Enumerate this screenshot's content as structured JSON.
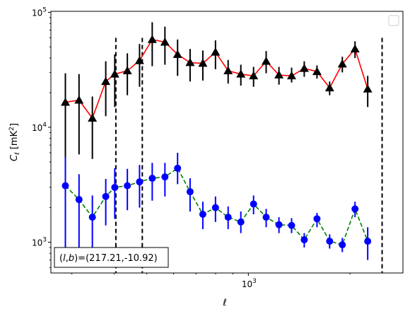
{
  "chart_data": {
    "type": "scatter",
    "xscale": "log",
    "yscale": "log",
    "xlim": [
      260,
      2870
    ],
    "ylim": [
      540,
      102000
    ],
    "xlabel": "ℓ",
    "ylabel_main": "C",
    "ylabel_sub": "ℓ",
    "ylabel_unit_pre": "[mK",
    "ylabel_unit_sup": "2",
    "ylabel_unit_post": "]",
    "x_ticks": [
      {
        "value": 1000,
        "base": "10",
        "exp": "3"
      }
    ],
    "y_ticks": [
      {
        "value": 1000,
        "base": "10",
        "exp": "3"
      },
      {
        "value": 10000,
        "base": "10",
        "exp": "4"
      },
      {
        "value": 100000,
        "base": "10",
        "exp": "5"
      }
    ],
    "legend": "upper right (empty)",
    "grid": false,
    "vlines": [
      405,
      485,
      2490
    ],
    "annotation": {
      "prefix": "(",
      "l": "l",
      "sep": ",",
      "b": "b",
      "suffix": ")=(217.21,-10.92)"
    },
    "series": [
      {
        "color": "#ff0000",
        "linestyle": "solid",
        "marker": "triangle",
        "marker_color": "#000000",
        "errorbar_color": "#000000",
        "points": [
          {
            "x": 287,
            "y": 16500,
            "lo": 1000,
            "hi": 29500
          },
          {
            "x": 315,
            "y": 17200,
            "lo": 5800,
            "hi": 29000
          },
          {
            "x": 345,
            "y": 12000,
            "lo": 5300,
            "hi": 18500
          },
          {
            "x": 378,
            "y": 25000,
            "lo": 12500,
            "hi": 37500
          },
          {
            "x": 402,
            "y": 29000,
            "lo": 15000,
            "hi": 43000
          },
          {
            "x": 438,
            "y": 31000,
            "lo": 19000,
            "hi": 44000
          },
          {
            "x": 476,
            "y": 38000,
            "lo": 22500,
            "hi": 53000
          },
          {
            "x": 519,
            "y": 58000,
            "lo": 34000,
            "hi": 82000
          },
          {
            "x": 566,
            "y": 55000,
            "lo": 35000,
            "hi": 75000
          },
          {
            "x": 617,
            "y": 43000,
            "lo": 28000,
            "hi": 58000
          },
          {
            "x": 672,
            "y": 36500,
            "lo": 25000,
            "hi": 48000
          },
          {
            "x": 733,
            "y": 36000,
            "lo": 25500,
            "hi": 46500
          },
          {
            "x": 799,
            "y": 45000,
            "lo": 32000,
            "hi": 57000
          },
          {
            "x": 871,
            "y": 31000,
            "lo": 24000,
            "hi": 38500
          },
          {
            "x": 950,
            "y": 29000,
            "lo": 23000,
            "hi": 35000
          },
          {
            "x": 1036,
            "y": 28000,
            "lo": 22500,
            "hi": 33500
          },
          {
            "x": 1129,
            "y": 37500,
            "lo": 29500,
            "hi": 46000
          },
          {
            "x": 1232,
            "y": 28500,
            "lo": 23500,
            "hi": 33500
          },
          {
            "x": 1343,
            "y": 28000,
            "lo": 24500,
            "hi": 33000
          },
          {
            "x": 1464,
            "y": 32500,
            "lo": 27500,
            "hi": 37500
          },
          {
            "x": 1597,
            "y": 30500,
            "lo": 26500,
            "hi": 34500
          },
          {
            "x": 1741,
            "y": 22000,
            "lo": 19000,
            "hi": 25000
          },
          {
            "x": 1898,
            "y": 35500,
            "lo": 30000,
            "hi": 41000
          },
          {
            "x": 2070,
            "y": 48000,
            "lo": 40000,
            "hi": 56000
          },
          {
            "x": 2257,
            "y": 21500,
            "lo": 15000,
            "hi": 28000
          }
        ]
      },
      {
        "color": "#008000",
        "linestyle": "dashed",
        "marker": "circle",
        "marker_color": "#0000ff",
        "errorbar_color": "#0000ff",
        "points": [
          {
            "x": 287,
            "y": 3100,
            "lo": 800,
            "hi": 5500
          },
          {
            "x": 315,
            "y": 2350,
            "lo": 800,
            "hi": 3900
          },
          {
            "x": 345,
            "y": 1650,
            "lo": 900,
            "hi": 2550
          },
          {
            "x": 378,
            "y": 2500,
            "lo": 1400,
            "hi": 3550
          },
          {
            "x": 402,
            "y": 3000,
            "lo": 1600,
            "hi": 4400
          },
          {
            "x": 438,
            "y": 3100,
            "lo": 1900,
            "hi": 4350
          },
          {
            "x": 476,
            "y": 3350,
            "lo": 2000,
            "hi": 4700
          },
          {
            "x": 519,
            "y": 3600,
            "lo": 2300,
            "hi": 4900
          },
          {
            "x": 566,
            "y": 3700,
            "lo": 2500,
            "hi": 4900
          },
          {
            "x": 617,
            "y": 4400,
            "lo": 3200,
            "hi": 6000
          },
          {
            "x": 672,
            "y": 2750,
            "lo": 1850,
            "hi": 3600
          },
          {
            "x": 733,
            "y": 1750,
            "lo": 1300,
            "hi": 2250
          },
          {
            "x": 799,
            "y": 2000,
            "lo": 1500,
            "hi": 2500
          },
          {
            "x": 871,
            "y": 1650,
            "lo": 1300,
            "hi": 2050
          },
          {
            "x": 950,
            "y": 1500,
            "lo": 1200,
            "hi": 1850
          },
          {
            "x": 1036,
            "y": 2150,
            "lo": 1750,
            "hi": 2550
          },
          {
            "x": 1129,
            "y": 1650,
            "lo": 1350,
            "hi": 1950
          },
          {
            "x": 1232,
            "y": 1420,
            "lo": 1200,
            "hi": 1650
          },
          {
            "x": 1343,
            "y": 1400,
            "lo": 1200,
            "hi": 1620
          },
          {
            "x": 1464,
            "y": 1050,
            "lo": 900,
            "hi": 1200
          },
          {
            "x": 1597,
            "y": 1600,
            "lo": 1350,
            "hi": 1800
          },
          {
            "x": 1741,
            "y": 1020,
            "lo": 880,
            "hi": 1170
          },
          {
            "x": 1898,
            "y": 950,
            "lo": 820,
            "hi": 1090
          },
          {
            "x": 2070,
            "y": 1950,
            "lo": 1650,
            "hi": 2250
          },
          {
            "x": 2257,
            "y": 1020,
            "lo": 700,
            "hi": 1350
          }
        ]
      }
    ]
  }
}
